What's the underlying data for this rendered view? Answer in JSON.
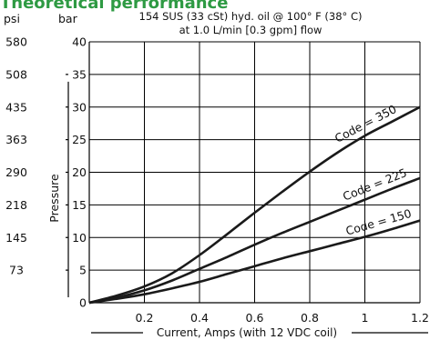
{
  "chart_data": {
    "type": "line",
    "title": "Theoretical performance",
    "subtitle_line1": "154 SUS (33 cSt) hyd. oil @ 100° F (38° C)",
    "subtitle_line2": "at 1.0 L/min [0.3 gpm] flow",
    "xlabel": "Current, Amps (with 12 VDC coil)",
    "ylabel": "Pressure",
    "y_unit_left": "psi",
    "y_unit_right": "bar",
    "xlim": [
      0,
      1.2
    ],
    "ylim": [
      0,
      40
    ],
    "x_ticks": [
      0.2,
      0.4,
      0.6,
      0.8,
      1,
      1.2
    ],
    "x_tick_labels": [
      "0.2",
      "0.4",
      "0.6",
      "0.8",
      "1",
      "1.2"
    ],
    "y_ticks_bar": [
      0,
      5,
      10,
      15,
      20,
      25,
      30,
      35,
      40
    ],
    "y_tick_labels_bar": [
      "0",
      "5",
      "10",
      "15",
      "20",
      "25",
      "30",
      "35",
      "40"
    ],
    "y_tick_labels_psi": [
      "",
      "73",
      "145",
      "218",
      "290",
      "363",
      "435",
      "508",
      "580"
    ],
    "grid": true,
    "series": [
      {
        "name": "Code = 350",
        "x": [
          0,
          0.1,
          0.2,
          0.3,
          0.4,
          0.5,
          0.6,
          0.7,
          0.8,
          0.9,
          1.0,
          1.1,
          1.2
        ],
        "values": [
          0,
          1.1,
          2.5,
          4.5,
          7.3,
          10.5,
          13.8,
          17.0,
          20.1,
          23.0,
          25.6,
          27.8,
          30.0
        ]
      },
      {
        "name": "Code = 225",
        "x": [
          0,
          0.1,
          0.2,
          0.3,
          0.4,
          0.5,
          0.6,
          0.7,
          0.8,
          0.9,
          1.0,
          1.1,
          1.2
        ],
        "values": [
          0,
          0.8,
          1.9,
          3.4,
          5.2,
          7.0,
          8.9,
          10.7,
          12.4,
          14.1,
          15.8,
          17.5,
          19.1
        ]
      },
      {
        "name": "Code = 150",
        "x": [
          0,
          0.1,
          0.2,
          0.3,
          0.4,
          0.5,
          0.6,
          0.7,
          0.8,
          0.9,
          1.0,
          1.1,
          1.2
        ],
        "values": [
          0,
          0.6,
          1.3,
          2.2,
          3.2,
          4.4,
          5.6,
          6.8,
          7.9,
          9.0,
          10.1,
          11.3,
          12.6
        ]
      }
    ]
  }
}
